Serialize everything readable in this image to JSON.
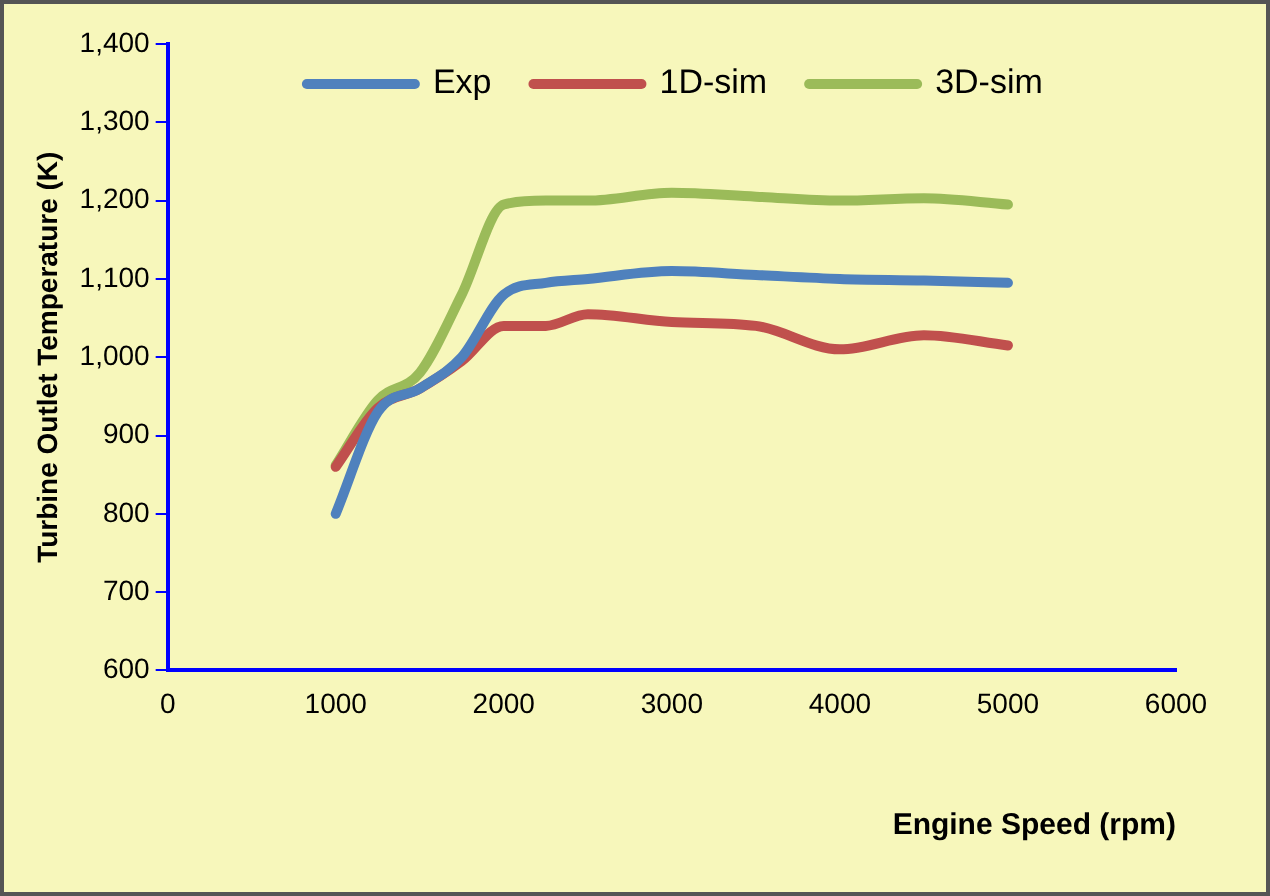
{
  "chart_data": {
    "type": "line",
    "xlabel": "Engine Speed (rpm)",
    "ylabel": "Turbine Outlet Temperature (K)",
    "x": [
      1000,
      1250,
      1500,
      1750,
      2000,
      2250,
      2500,
      3000,
      3500,
      4000,
      4500,
      5000
    ],
    "series": [
      {
        "name": "Exp",
        "color": "#4f81bd",
        "values": [
          800,
          930,
          960,
          1000,
          1080,
          1095,
          1100,
          1110,
          1105,
          1100,
          1098,
          1095
        ]
      },
      {
        "name": "1D-sim",
        "color": "#c0504d",
        "values": [
          860,
          935,
          960,
          995,
          1040,
          1040,
          1055,
          1045,
          1040,
          1010,
          1028,
          1015
        ]
      },
      {
        "name": "3D-sim",
        "color": "#9bbb59",
        "values": [
          862,
          945,
          980,
          1080,
          1195,
          1200,
          1200,
          1210,
          1205,
          1200,
          1203,
          1195
        ]
      }
    ],
    "xlim": [
      0,
      6000
    ],
    "xticks": [
      0,
      1000,
      2000,
      3000,
      4000,
      5000,
      6000
    ],
    "ylim": [
      600,
      1400
    ],
    "yticks": [
      600,
      700,
      800,
      900,
      {
        "value": 1000,
        "label": "1,000"
      },
      {
        "value": 1100,
        "label": "1,100"
      },
      {
        "value": 1200,
        "label": "1,200"
      },
      {
        "value": 1300,
        "label": "1,300"
      },
      {
        "value": 1400,
        "label": "1,400"
      }
    ],
    "grid": false,
    "legend": "top",
    "marker": "none",
    "line_style": "solid"
  }
}
